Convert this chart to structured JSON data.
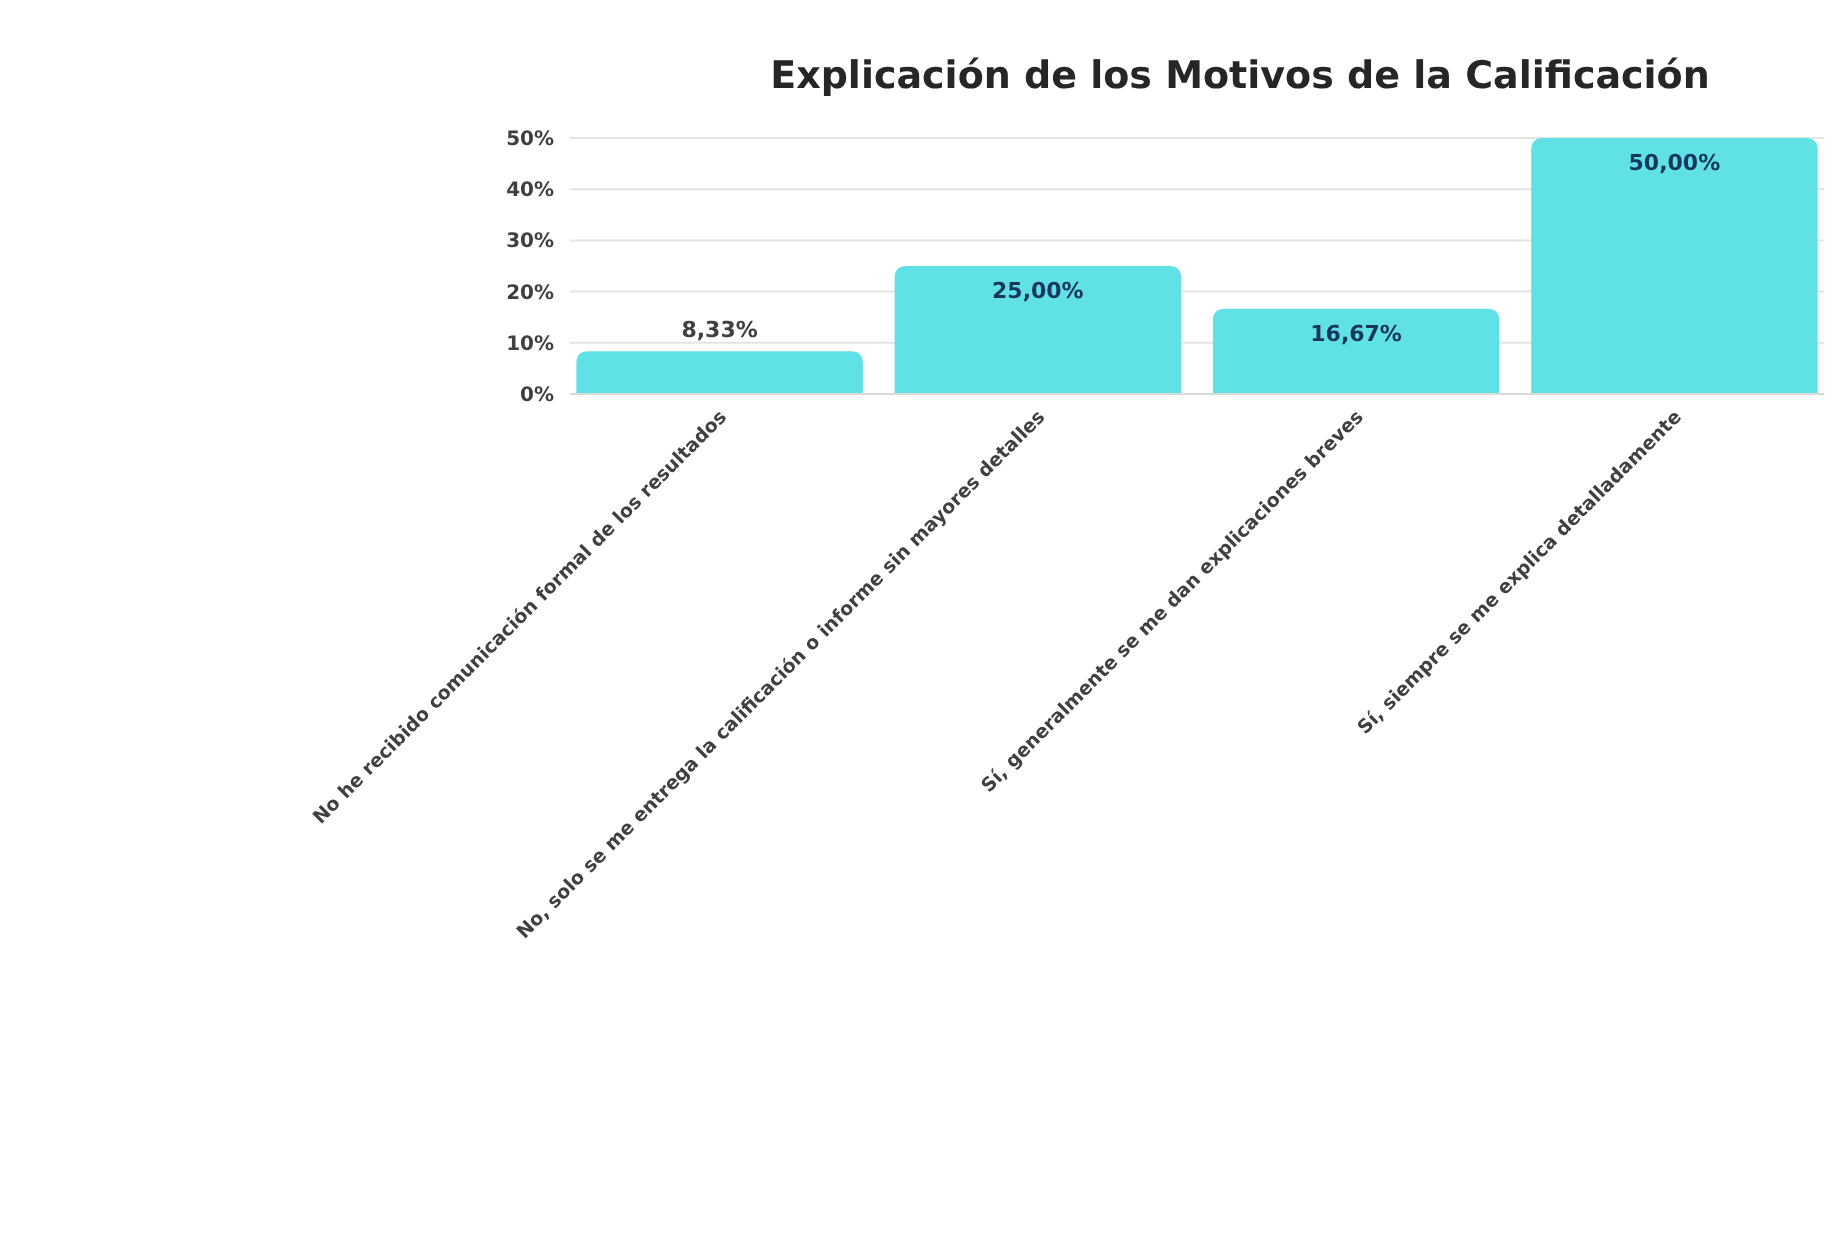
{
  "chart_data": {
    "type": "bar",
    "title": "Explicación de los Motivos de la Calificación",
    "categories": [
      "No he recibido comunicación formal de los resultados",
      "No, solo se me entrega la calificación o informe sin mayores detalles",
      "Sí, generalmente se me dan explicaciones breves",
      "Sí, siempre se me explica detalladamente"
    ],
    "values": [
      8.33,
      25,
      16.67,
      50
    ],
    "value_labels": [
      "8,33%",
      "25,00%",
      "16,67%",
      "50,00%"
    ],
    "color": "#5fe1e6",
    "ylim": [
      0,
      50
    ],
    "yticks": [
      {
        "value": 0,
        "label": "0%"
      },
      {
        "value": 10,
        "label": "10%"
      },
      {
        "value": 20,
        "label": "20%"
      },
      {
        "value": 30,
        "label": "30%"
      },
      {
        "value": 40,
        "label": "40%"
      },
      {
        "value": 50,
        "label": "50%"
      }
    ],
    "grid": "y"
  }
}
